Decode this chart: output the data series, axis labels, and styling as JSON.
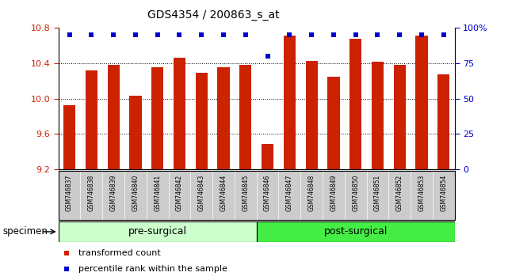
{
  "title": "GDS4354 / 200863_s_at",
  "samples": [
    "GSM746837",
    "GSM746838",
    "GSM746839",
    "GSM746840",
    "GSM746841",
    "GSM746842",
    "GSM746843",
    "GSM746844",
    "GSM746845",
    "GSM746846",
    "GSM746847",
    "GSM746848",
    "GSM746849",
    "GSM746850",
    "GSM746851",
    "GSM746852",
    "GSM746853",
    "GSM746854"
  ],
  "values": [
    9.93,
    10.32,
    10.38,
    10.03,
    10.36,
    10.46,
    10.29,
    10.36,
    10.38,
    9.49,
    10.71,
    10.43,
    10.25,
    10.68,
    10.42,
    10.38,
    10.71,
    10.28
  ],
  "percentile_ranks": [
    95,
    95,
    95,
    95,
    95,
    95,
    95,
    95,
    95,
    80,
    95,
    95,
    95,
    95,
    95,
    95,
    95,
    95
  ],
  "bar_color": "#cc2200",
  "dot_color": "#0000cc",
  "ylim_left": [
    9.2,
    10.8
  ],
  "ylim_right": [
    0,
    100
  ],
  "yticks_left": [
    9.2,
    9.6,
    10.0,
    10.4,
    10.8
  ],
  "yticks_right": [
    0,
    25,
    50,
    75,
    100
  ],
  "ytick_labels_right": [
    "0",
    "25",
    "50",
    "75",
    "100%"
  ],
  "grid_values": [
    9.6,
    10.0,
    10.4
  ],
  "pre_surgical_count": 9,
  "post_surgical_count": 9,
  "pre_surgical_label": "pre-surgical",
  "post_surgical_label": "post-surgical",
  "pre_surgical_color": "#ccffcc",
  "post_surgical_color": "#44ee44",
  "specimen_label": "specimen",
  "legend_items": [
    {
      "label": "transformed count",
      "color": "#cc2200"
    },
    {
      "label": "percentile rank within the sample",
      "color": "#0000cc"
    }
  ],
  "bar_width": 0.55,
  "label_bg_color": "#cccccc",
  "background_color": "#ffffff"
}
